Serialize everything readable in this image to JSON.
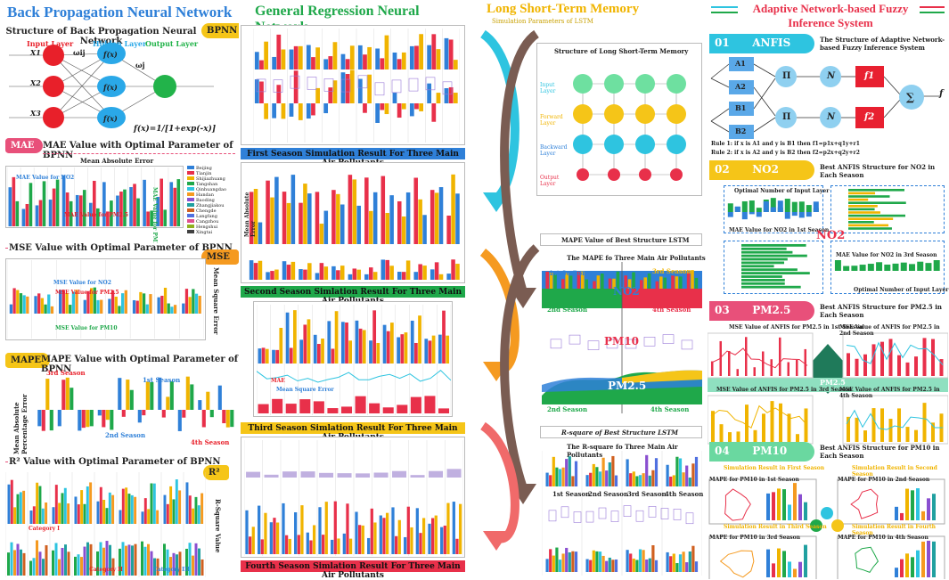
{
  "bpnn": {
    "title": "Back Propagation Neural Network",
    "structure_title": "Structure of Back Propagation Neural Network",
    "badge": "BPNN",
    "input_layer": "Input Layer",
    "hidden_layer": "Hidden Layer",
    "output_layer": "Output Layer",
    "inputs": [
      "X1",
      "X2",
      "X3"
    ],
    "hidden": [
      "f(x)",
      "f(x)",
      "f(x)"
    ],
    "weights": [
      "ωij",
      "ωj"
    ],
    "formula": "f(x)=1/[1+exp(-x)]",
    "mae_badge": "MAE",
    "mae_title": "MAE Value with Optimal Parameter of BPNN",
    "mae_chart_title": "Mean Absolute Error",
    "mae_no2": "MAE Value for NO2",
    "mae_pm25": "MAE Value for PM2.5",
    "mae_pm10": "MAE Value for PM10",
    "cities": [
      "Beijing",
      "Tianjin",
      "Shijiazhuang",
      "Tangshan",
      "Qinhuangdao",
      "Handan",
      "Baoding",
      "Zhangjiakou",
      "Chengde",
      "Langfang",
      "Cangzhou",
      "Hengshui",
      "Xingtai"
    ],
    "mse_badge": "MSE",
    "mse_title": "MSE Value with Optimal Parameter of BPNN",
    "mse_no2": "MSE Value for NO2",
    "mse_pm25": "MSE Value for PM2.5",
    "mse_pm10": "MSE Value for PM10",
    "mse_axis": "Mean Square Error",
    "mape_badge": "MAPE",
    "mape_title": "MAPE Value with Optimal Parameter of BPNN",
    "mape_axis": "Mean Absolute Percentage Error",
    "seasons": [
      "1st Season",
      "2nd Season",
      "3rd Season",
      "4th Season"
    ],
    "r2_badge": "R²",
    "r2_title": "R² Value with Optimal Parameter of BPNN",
    "r2_axis": "R-Square Value",
    "categories": [
      "Category I",
      "Category II",
      "Category III"
    ]
  },
  "grnn": {
    "title": "General Regression Neural Network",
    "banner1": "First Season Simulation Result For Three Main Air Pollutants",
    "banner2": "Second Season Simlation Result For Three Main Air Pollutants",
    "banner3": "Third Season Simlation Result For Three Main Air Pollutants",
    "banner4": "Fourth Season Simlation Result For Three Main Air Pollutants",
    "legend": [
      "NO2",
      "PM2.5",
      "PM10"
    ],
    "mae_label": "MAE",
    "mse_label": "Mean Square Error",
    "mape_axis": "Mean Absolute Percentage Error",
    "mae_axis": "Mean Absolute Error"
  },
  "lstm": {
    "title": "Long Short-Term Memory",
    "subtitle": "Simulation Parameters of LSTM",
    "structure_title": "Structure of Long Short-Term Memory",
    "layers": [
      "Input Layer",
      "Forward Layer",
      "Backward Layer",
      "Output Layer"
    ],
    "mape_header": "MAPE Value of Best Structure LSTM",
    "mape_chart_title": "The MAPE fo Three Main Air Pollutants",
    "r2_header": "R-square of Best Structure LSTM",
    "r2_chart_title": "The R-square fo Three Main Air Pollutants",
    "seasons": [
      "1st Season",
      "2nd Season",
      "3rd Season",
      "4th Season"
    ],
    "pollutants": [
      "NO2",
      "PM10",
      "PM2.5"
    ]
  },
  "anfis": {
    "title": "Adaptive Network-based Fuzzy Inference System",
    "step1_num": "01",
    "step1_label": "ANFIS",
    "step1_desc": "The Structure of Adaptive Network-based Fuzzy Inference System",
    "nodes_a": [
      "A1",
      "A2"
    ],
    "nodes_b": [
      "B1",
      "B2"
    ],
    "pi": "Π",
    "n": "N",
    "f": [
      "f1",
      "f2"
    ],
    "sum": "∑",
    "out": "f",
    "rule1": "Rule 1: if x is A1 and y is B1 then f1=p1x+q1y+r1",
    "rule2": "Rule 2: if x is A2 and y is B2 then f2=p2x+q2y+r2",
    "step2_num": "02",
    "step2_label": "NO2",
    "step2_desc": "Best ANFIS Structure for NO2 in Each Season",
    "no2_panel1": "Optimal Number of Input Layer",
    "no2_panel2": "MAE Value for NO2 in 1st Season",
    "no2_panel3": "MAE Value for NO2 in 3rd Season",
    "no2_panel4": "Optimal Number of Input Layer",
    "step3_num": "03",
    "step3_label": "PM2.5",
    "step3_desc": "Best ANFIS Structure for PM2.5 in Each Season",
    "pm25_titles": [
      "MSE Value of ANFIS for PM2.5 in 1st Season",
      "MSE Value of ANFIS for PM2.5 in 2nd Season",
      "MSE Value of ANFIS for PM2.5 in 3rd Season",
      "MSE Value of ANFIS for PM2.5 in 4th Season"
    ],
    "step4_num": "04",
    "step4_label": "PM10",
    "step4_desc": "Best ANFIS Structure for PM10 in Each Season",
    "pm10_titles": [
      "Simulation Result in First Season",
      "Simulation Result in Second Season",
      "Simulation Result in Third Season",
      "Simulation Result in Fourth Season"
    ],
    "pm10_mape": [
      "MAPE for PM10 in 1st Season",
      "MAPE for PM10 in 2nd Season",
      "MAPE for PM10 in 3rd Season",
      "MAPE for PM10 in 4th Season"
    ]
  },
  "colors": {
    "blue": "#2f80d8",
    "green": "#1fa84a",
    "yellow": "#f0b400",
    "red": "#e8304a",
    "cyan": "#2ec4e0",
    "brown": "#7a5c52",
    "orange": "#f59a20",
    "pink": "#e8507a"
  }
}
